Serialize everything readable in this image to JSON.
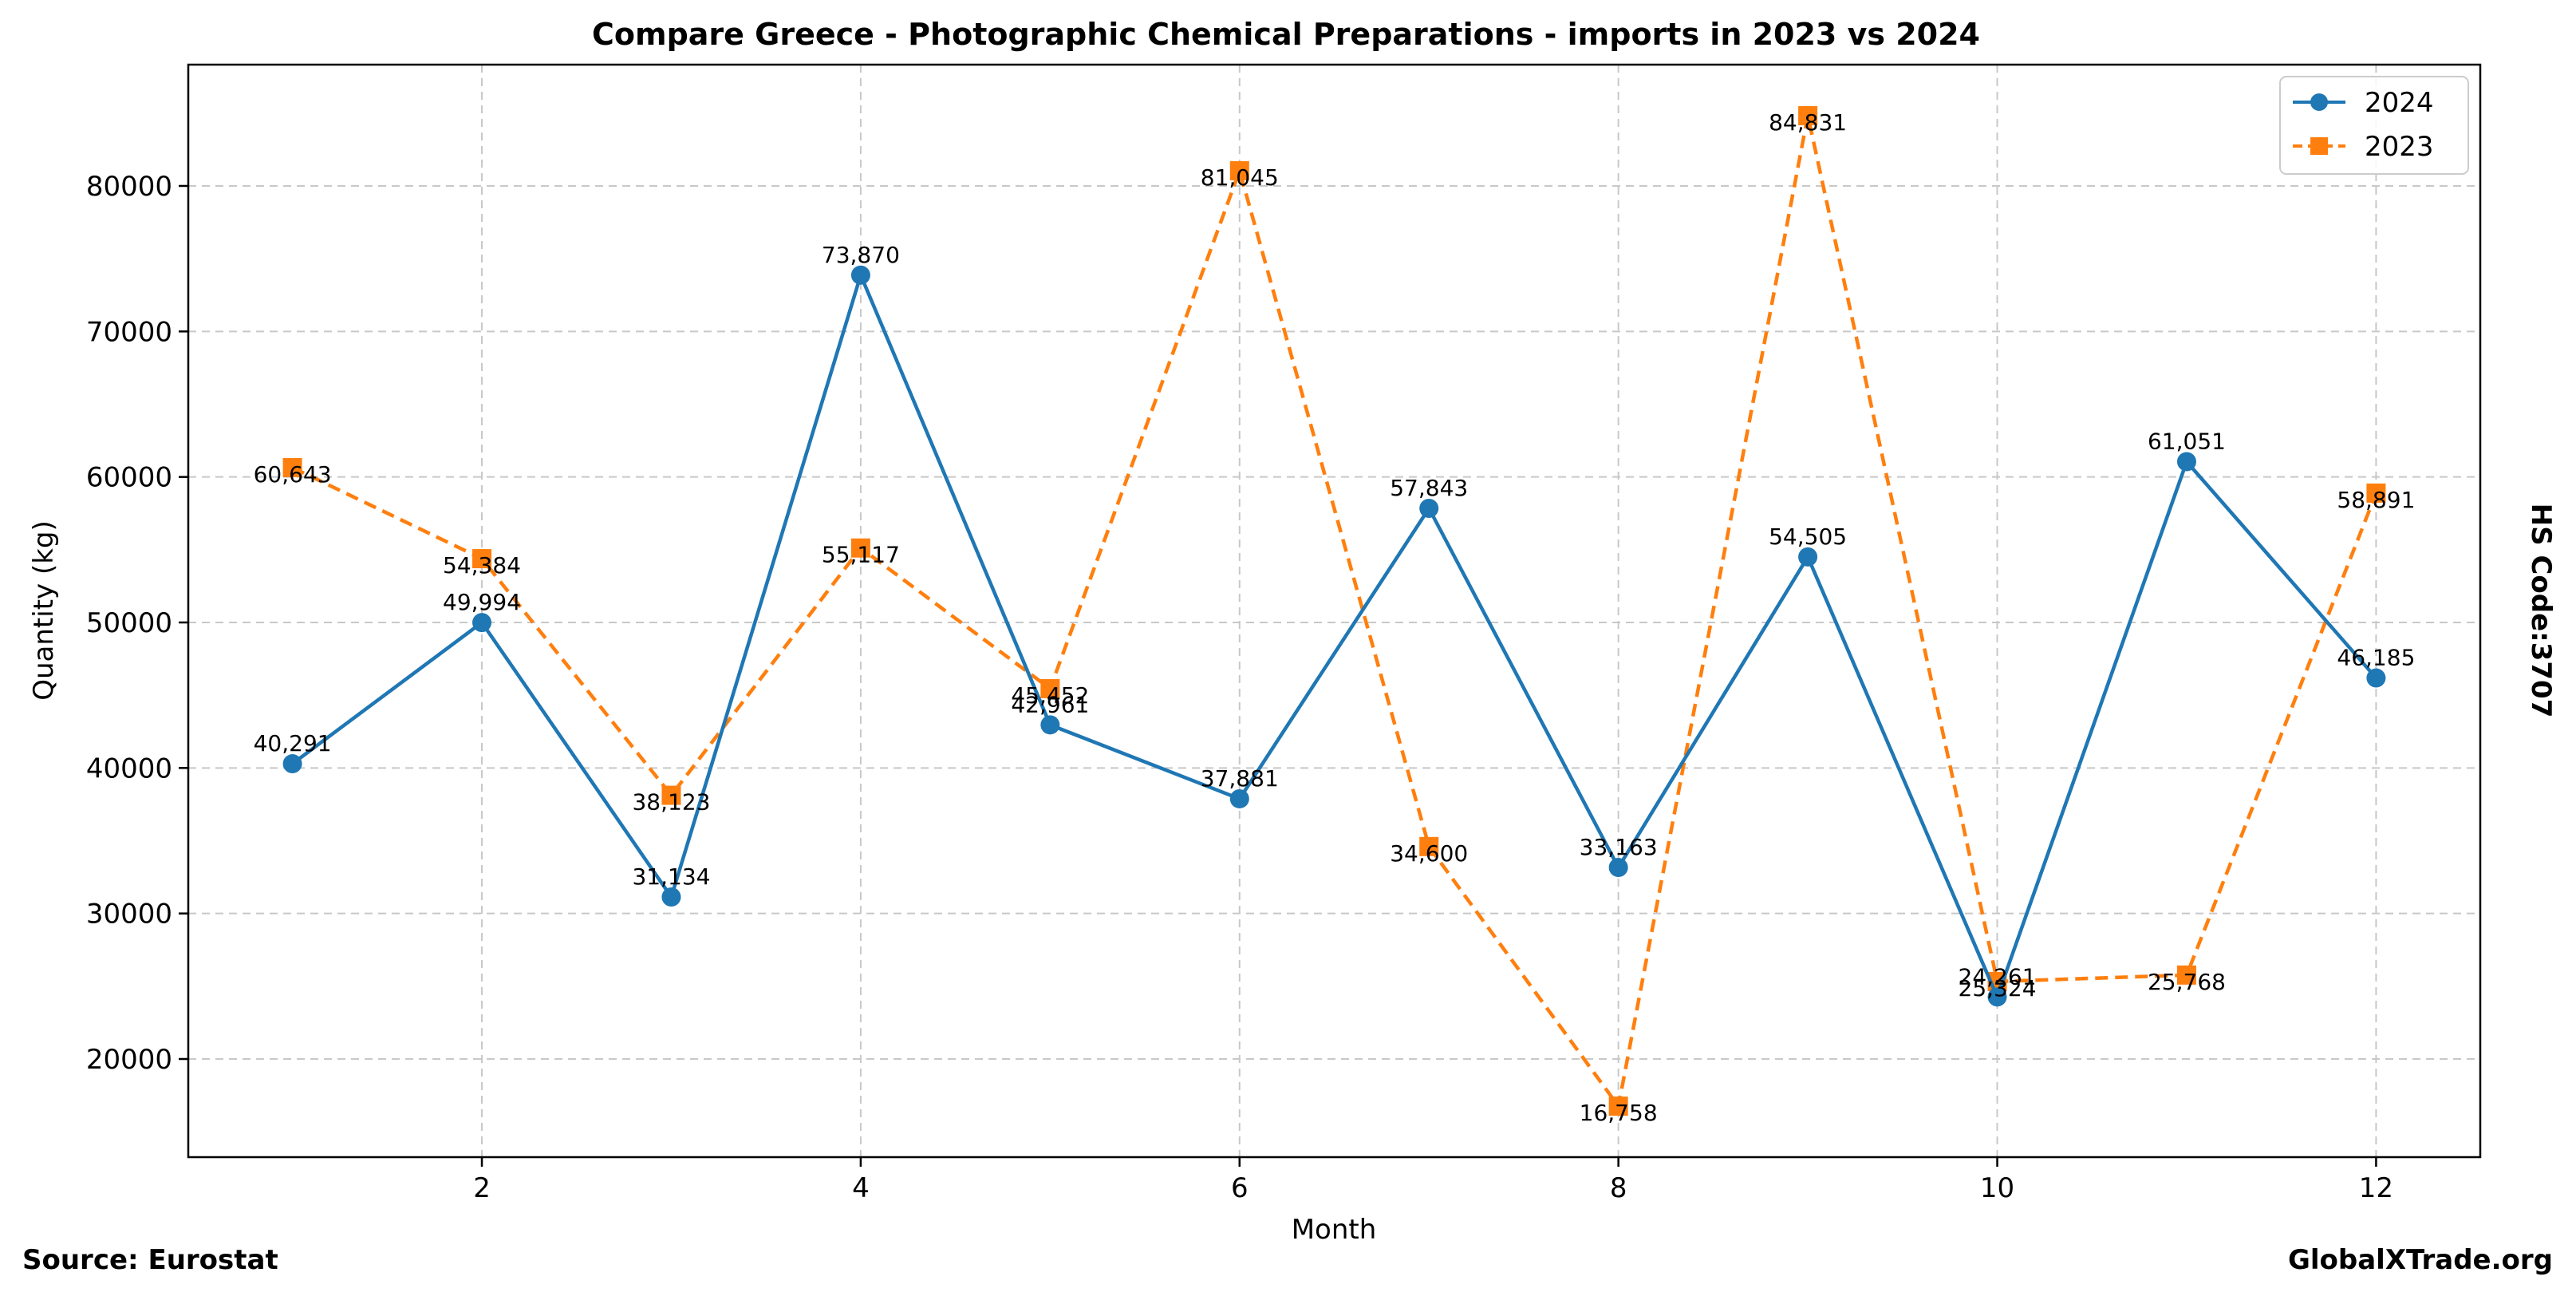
{
  "chart_data": {
    "type": "line",
    "title": "Compare Greece - Photographic Chemical Preparations - imports in 2023 vs 2024",
    "xlabel": "Month",
    "ylabel": "Quantity (kg)",
    "xlim": [
      0.45,
      12.55
    ],
    "ylim": [
      13255,
      88335
    ],
    "x_ticks": [
      2,
      4,
      6,
      8,
      10,
      12
    ],
    "y_ticks": [
      20000,
      30000,
      40000,
      50000,
      60000,
      70000,
      80000
    ],
    "grid": true,
    "legend_position": "top-right",
    "x": [
      1,
      2,
      3,
      4,
      5,
      6,
      7,
      8,
      9,
      10,
      11,
      12
    ],
    "series": [
      {
        "name": "2024",
        "color": "#1f77b4",
        "line_style": "solid",
        "marker": "circle",
        "values": [
          40291,
          49994,
          31134,
          73870,
          42961,
          37881,
          57843,
          33163,
          54505,
          24261,
          61051,
          46185
        ],
        "labels": [
          "40,291",
          "49,994",
          "31,134",
          "73,870",
          "42,961",
          "37,881",
          "57,843",
          "33,163",
          "54,505",
          "24,261",
          "61,051",
          "46,185"
        ]
      },
      {
        "name": "2023",
        "color": "#ff7f0e",
        "line_style": "dashed",
        "marker": "square",
        "values": [
          60643,
          54384,
          38123,
          55117,
          45452,
          81045,
          34600,
          16758,
          84831,
          25324,
          25768,
          58891
        ],
        "labels": [
          "60,643",
          "54,384",
          "38,123",
          "55,117",
          "45,452",
          "81,045",
          "34,600",
          "16,758",
          "84,831",
          "25,324",
          "25,768",
          "58,891"
        ]
      }
    ]
  },
  "side_label": "HS Code:3707",
  "footer": {
    "source": "Source: Eurostat",
    "brand": "GlobalXTrade.org"
  }
}
